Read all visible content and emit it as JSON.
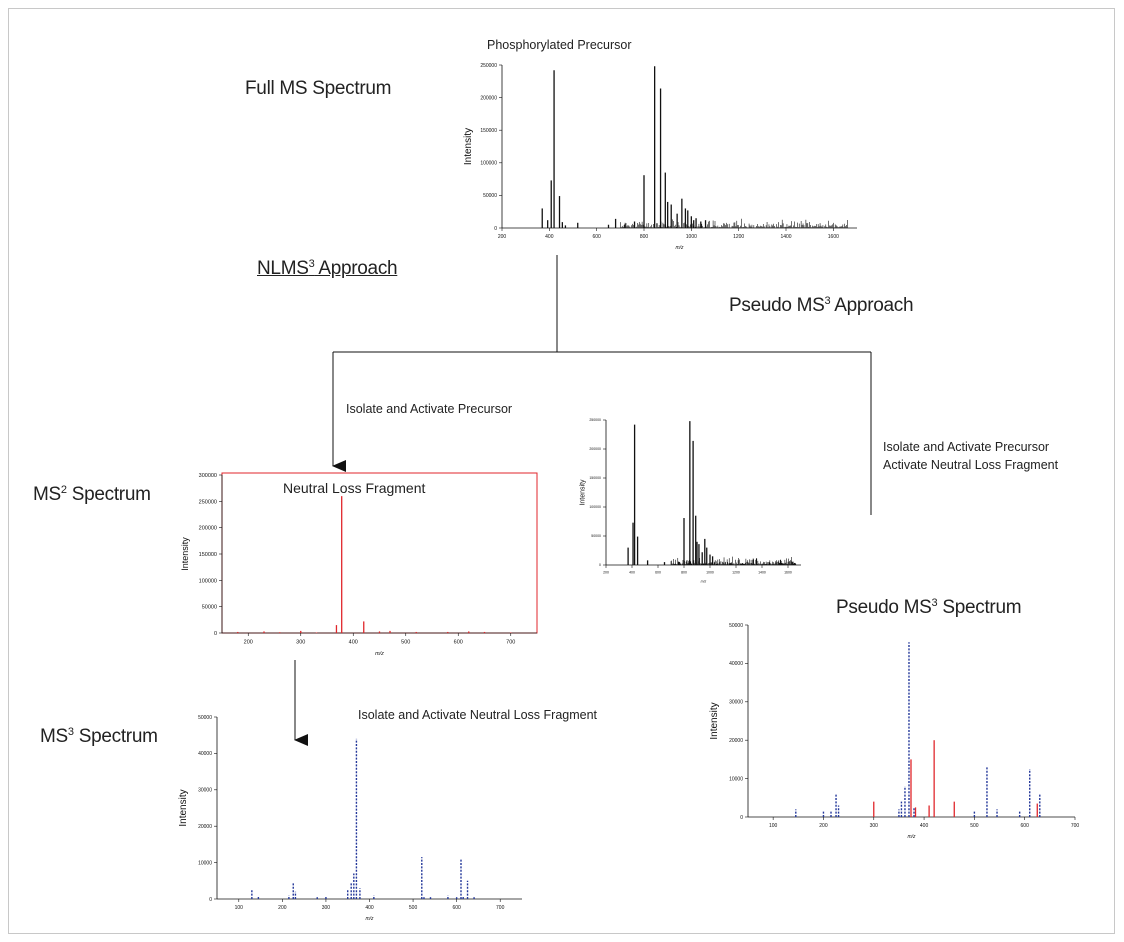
{
  "labels": {
    "full_ms": "Full MS Spectrum",
    "phospho_precursor": "Phosphorylated Precursor",
    "nlms3_prefix": "NLMS",
    "nlms3_sup": "3",
    "nlms3_suffix": " Approach",
    "pseudo_approach_prefix": "Pseudo MS",
    "pseudo_approach_sup": "3",
    "pseudo_approach_suffix": " Approach",
    "isolate_activate_precursor": "Isolate and Activate Precursor",
    "pseudo_step_line1": "Isolate and Activate Precursor",
    "pseudo_step_line2": "Activate Neutral Loss Fragment",
    "ms2_prefix": "MS",
    "ms2_sup": "2",
    "ms2_suffix": " Spectrum",
    "neutral_loss_fragment": "Neutral Loss Fragment",
    "ms3_prefix": "MS",
    "ms3_sup": "3",
    "ms3_suffix": " Spectrum",
    "isolate_activate_nl": "Isolate and Activate Neutral Loss Fragment",
    "pseudo_spec_prefix": "Pseudo MS",
    "pseudo_spec_sup": "3",
    "pseudo_spec_suffix": " Spectrum"
  },
  "colors": {
    "black": "#111111",
    "red": "#e0262b",
    "blue": "#23379a",
    "box_border": "#e0262b"
  },
  "chart_data": [
    {
      "id": "full-ms",
      "type": "bar",
      "ylabel": "Intensity",
      "xlabel": "m/z",
      "xlim": [
        200,
        1700
      ],
      "ylim": [
        0,
        250000
      ],
      "xticks": [
        200,
        400,
        600,
        800,
        1000,
        1200,
        1400,
        1600
      ],
      "yticks": [
        0,
        50000,
        100000,
        150000,
        200000,
        250000
      ],
      "noise_from": 700,
      "noise_to": 1660,
      "series": [
        {
          "color": "#111111",
          "dashed": false,
          "x": [
            370,
            393,
            408,
            420,
            443,
            455,
            468,
            520,
            650,
            680,
            720,
            760,
            800,
            845,
            870,
            890,
            900,
            915,
            940,
            960,
            975,
            985,
            1000,
            1010,
            1020,
            1040,
            1060
          ],
          "y": [
            30000,
            12000,
            73000,
            242000,
            49000,
            9000,
            4000,
            8000,
            5000,
            14000,
            6000,
            10000,
            81000,
            248000,
            214000,
            85000,
            40000,
            36000,
            22000,
            45000,
            30000,
            27000,
            18000,
            12000,
            15000,
            10000,
            12000
          ]
        }
      ]
    },
    {
      "id": "ms2",
      "type": "bar",
      "ylabel": "Intensity",
      "xlabel": "m/z",
      "xlim": [
        150,
        750
      ],
      "ylim": [
        0,
        300000
      ],
      "xticks": [
        200,
        300,
        400,
        500,
        600,
        700
      ],
      "yticks": [
        0,
        50000,
        100000,
        150000,
        200000,
        250000,
        300000
      ],
      "series": [
        {
          "color": "#e0262b",
          "dashed": false,
          "x": [
            180,
            230,
            260,
            300,
            330,
            368,
            378,
            420,
            450,
            470,
            520,
            580,
            620,
            650,
            700
          ],
          "y": [
            2000,
            3000,
            1500,
            4000,
            1000,
            15000,
            260000,
            22000,
            3000,
            4000,
            2000,
            2000,
            3000,
            2000,
            1000
          ]
        }
      ]
    },
    {
      "id": "pseudo-inset",
      "type": "bar",
      "ylabel": "Intensity",
      "xlabel": "m/z",
      "xlim": [
        200,
        1700
      ],
      "ylim": [
        0,
        250000
      ],
      "xticks": [
        200,
        400,
        600,
        800,
        1000,
        1200,
        1400,
        1600
      ],
      "yticks": [
        0,
        50000,
        100000,
        150000,
        200000,
        250000
      ],
      "noise_from": 700,
      "noise_to": 1660,
      "series": [
        {
          "color": "#111111",
          "dashed": false,
          "x": [
            370,
            408,
            420,
            443,
            520,
            650,
            800,
            845,
            870,
            890,
            900,
            915,
            940,
            960,
            975,
            1000,
            1020
          ],
          "y": [
            30000,
            73000,
            242000,
            49000,
            8000,
            5000,
            81000,
            248000,
            214000,
            85000,
            40000,
            36000,
            22000,
            45000,
            30000,
            18000,
            15000
          ]
        }
      ]
    },
    {
      "id": "ms3",
      "type": "bar",
      "ylabel": "Intensity",
      "xlabel": "m/z",
      "xlim": [
        50,
        750
      ],
      "ylim": [
        0,
        50000
      ],
      "xticks": [
        100,
        200,
        300,
        400,
        500,
        600,
        700
      ],
      "yticks": [
        0,
        10000,
        20000,
        30000,
        40000,
        50000
      ],
      "series": [
        {
          "color": "#23379a",
          "dashed": true,
          "x": [
            130,
            145,
            215,
            225,
            230,
            280,
            300,
            350,
            358,
            364,
            370,
            378,
            410,
            520,
            525,
            540,
            580,
            600,
            610,
            615,
            625,
            640
          ],
          "y": [
            2500,
            800,
            1000,
            4500,
            2000,
            500,
            800,
            2500,
            4500,
            7000,
            44000,
            3000,
            1000,
            11500,
            500,
            500,
            1000,
            500,
            11000,
            700,
            5000,
            500
          ]
        }
      ]
    },
    {
      "id": "pseudo-ms3",
      "type": "bar",
      "ylabel": "Intensity",
      "xlabel": "m/z",
      "xlim": [
        50,
        700
      ],
      "ylim": [
        0,
        50000
      ],
      "xticks": [
        100,
        200,
        300,
        400,
        500,
        600,
        700
      ],
      "yticks": [
        0,
        10000,
        20000,
        30000,
        40000,
        50000
      ],
      "series": [
        {
          "color": "#23379a",
          "dashed": true,
          "x": [
            145,
            200,
            215,
            225,
            230,
            350,
            355,
            362,
            370,
            380,
            500,
            525,
            545,
            590,
            610,
            630
          ],
          "y": [
            2000,
            1500,
            1500,
            6000,
            3000,
            2000,
            4000,
            8000,
            45500,
            2500,
            1500,
            13000,
            2000,
            1500,
            12500,
            6000
          ]
        },
        {
          "color": "#e0262b",
          "dashed": false,
          "x": [
            300,
            374,
            383,
            410,
            420,
            460,
            625
          ],
          "y": [
            4000,
            15000,
            2500,
            3000,
            20000,
            4000,
            3500
          ]
        }
      ]
    }
  ]
}
